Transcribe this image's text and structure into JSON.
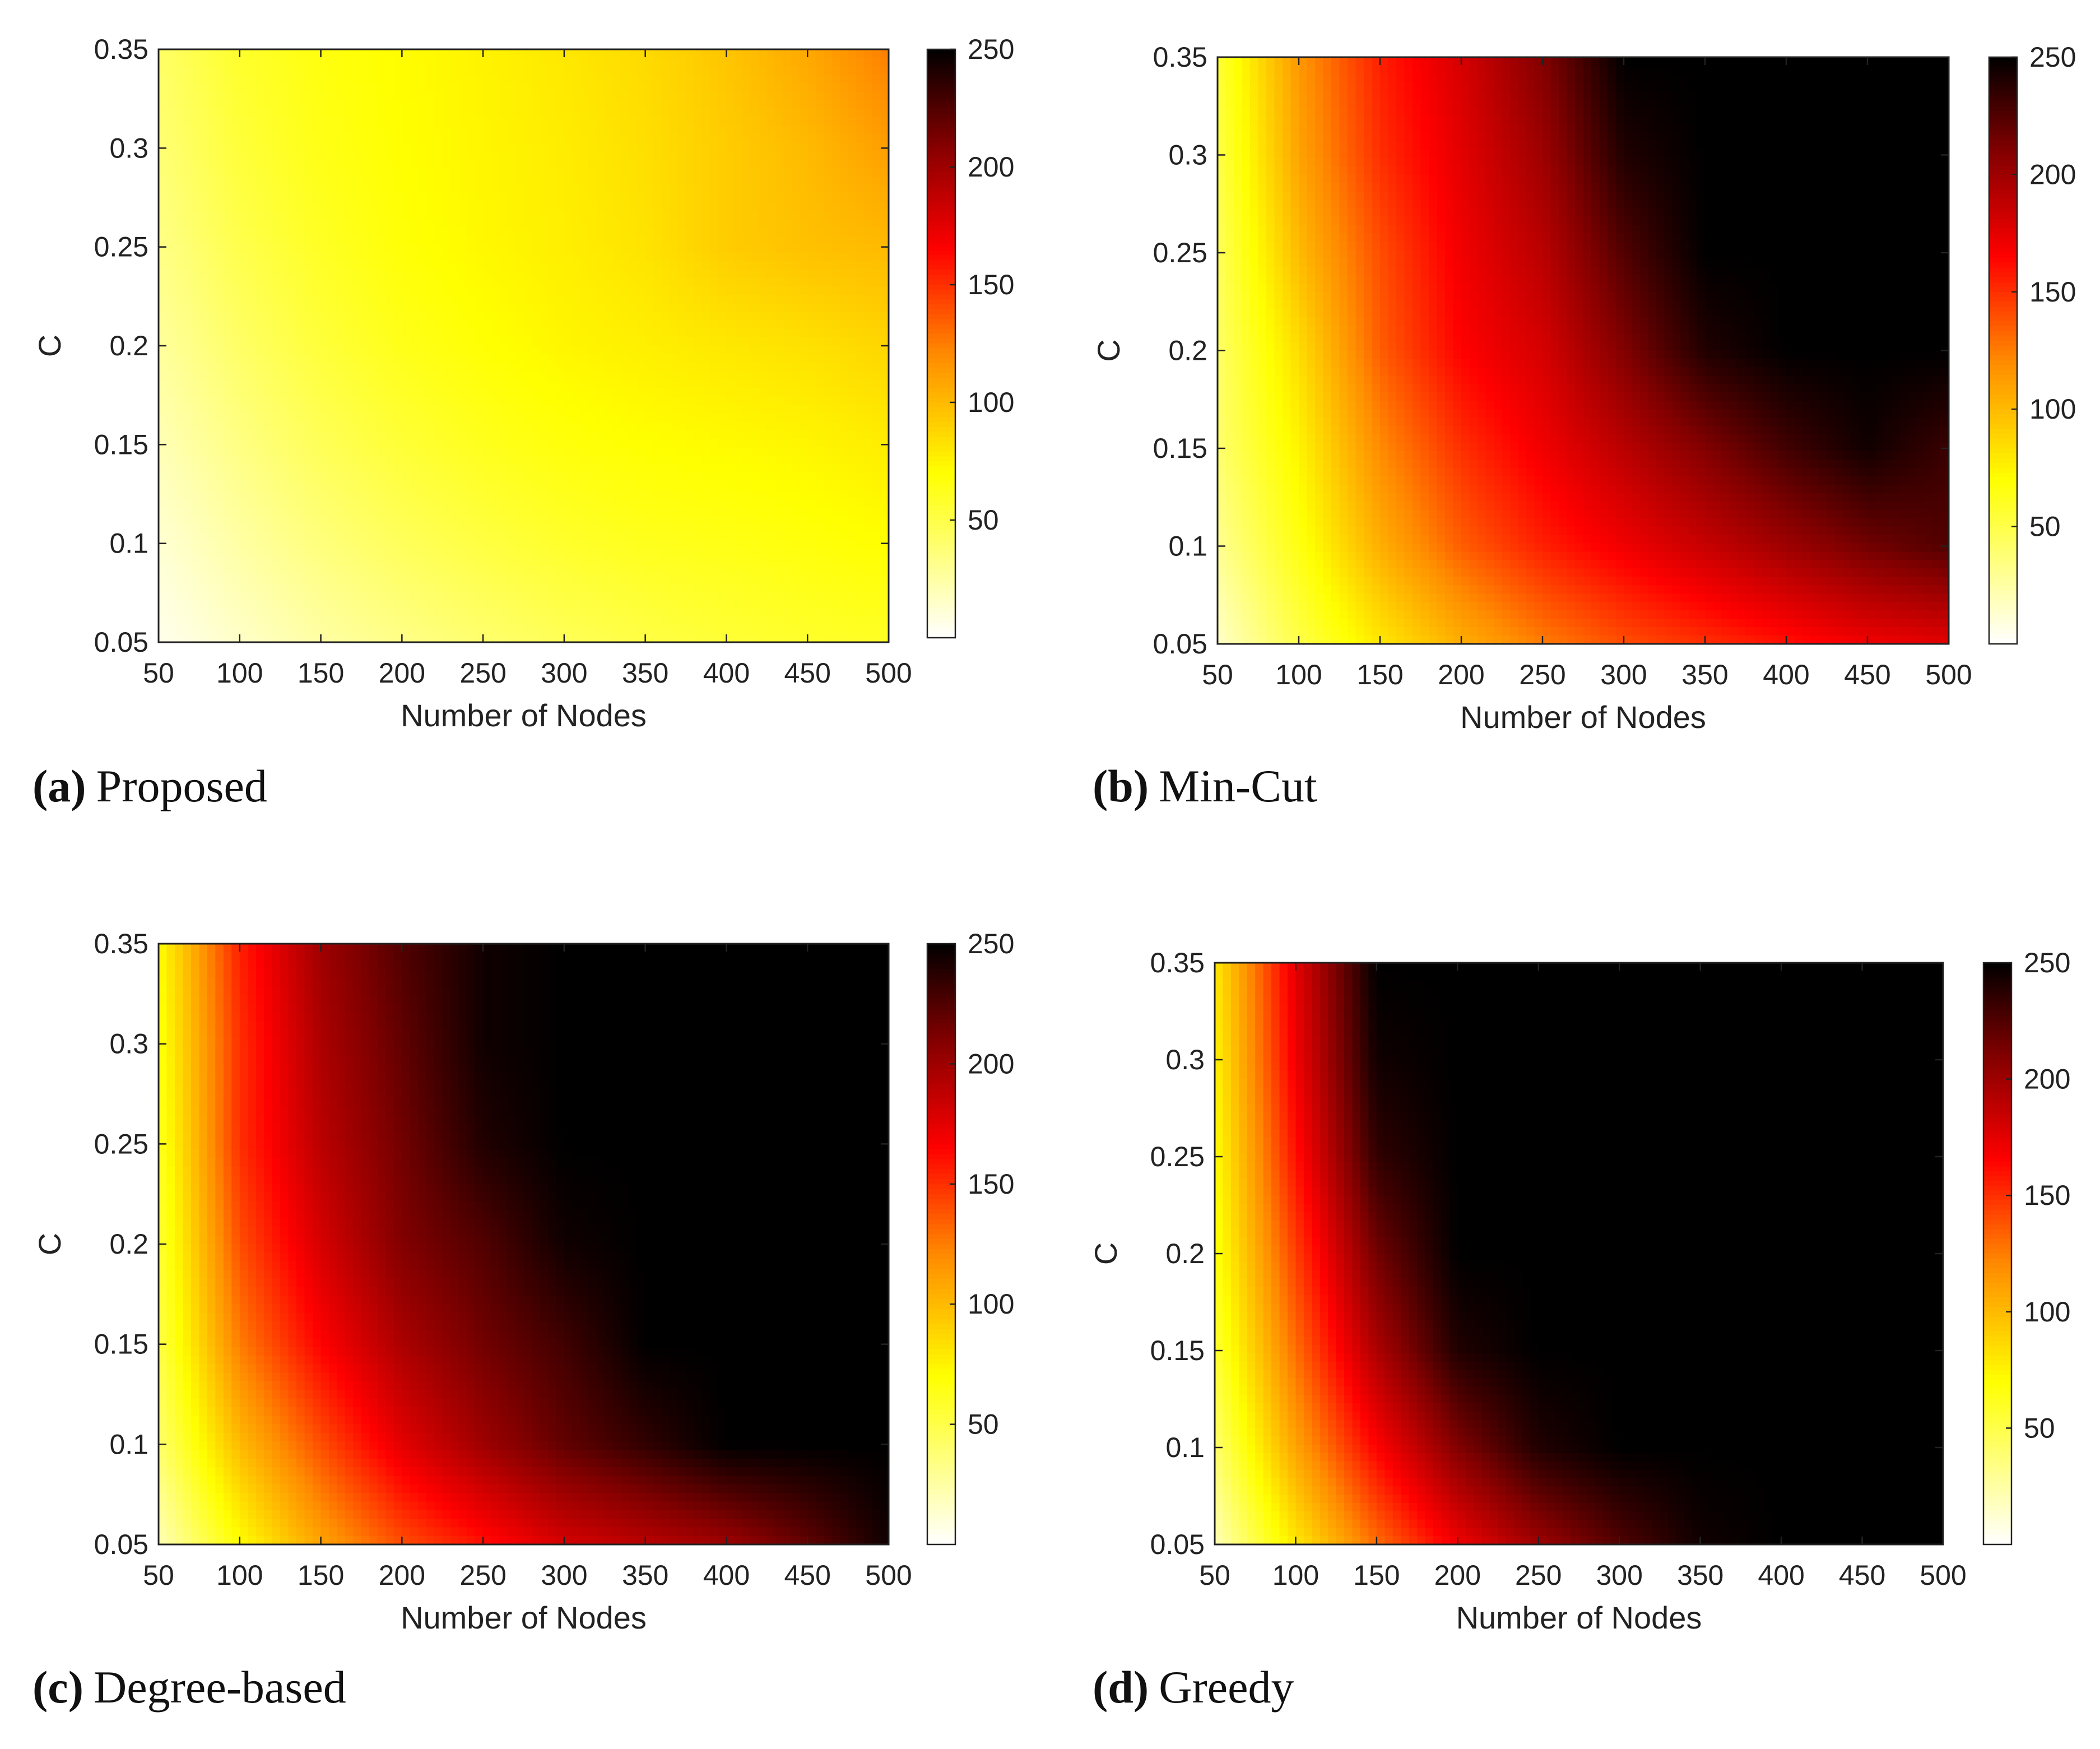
{
  "colorbar": {
    "min": 0,
    "max": 250,
    "ticks": [
      50,
      100,
      150,
      200,
      250
    ],
    "colormap": "hot (reversed)",
    "stops": [
      "#ffffff",
      "#ffff00",
      "#ff8000",
      "#ff0000",
      "#8b0000",
      "#000000"
    ]
  },
  "chart_data": [
    {
      "type": "heatmap",
      "caption_letter": "(a)",
      "caption_text": "Proposed",
      "xlabel": "Number of Nodes",
      "ylabel": "C",
      "x": [
        50,
        100,
        150,
        200,
        250,
        300,
        350,
        400,
        450,
        500
      ],
      "y": [
        0.05,
        0.1,
        0.15,
        0.2,
        0.25,
        0.3,
        0.35
      ],
      "xticks": [
        "50",
        "100",
        "150",
        "200",
        "250",
        "300",
        "350",
        "400",
        "450",
        "500"
      ],
      "yticks": [
        "0.05",
        "0.1",
        "0.15",
        "0.2",
        "0.25",
        "0.3",
        "0.35"
      ],
      "xlim": [
        50,
        500
      ],
      "ylim": [
        0.05,
        0.35
      ],
      "clim": [
        0,
        250
      ],
      "colorbar_ticks": [
        "50",
        "100",
        "150",
        "200",
        "250"
      ],
      "z": [
        [
          5,
          15,
          25,
          33,
          40,
          46,
          51,
          55,
          58,
          60
        ],
        [
          12,
          25,
          36,
          45,
          52,
          58,
          62,
          64,
          67,
          70
        ],
        [
          20,
          34,
          46,
          55,
          62,
          67,
          70,
          72,
          74,
          78
        ],
        [
          27,
          42,
          54,
          63,
          69,
          74,
          77,
          80,
          83,
          88
        ],
        [
          33,
          49,
          60,
          68,
          73,
          77,
          82,
          92,
          97,
          100
        ],
        [
          38,
          54,
          64,
          70,
          74,
          78,
          84,
          92,
          100,
          112
        ],
        [
          42,
          58,
          66,
          71,
          75,
          80,
          86,
          95,
          108,
          125
        ]
      ]
    },
    {
      "type": "heatmap",
      "caption_letter": "(b)",
      "caption_text": "Min-Cut",
      "xlabel": "Number of Nodes",
      "ylabel": "C",
      "x": [
        50,
        100,
        150,
        200,
        250,
        300,
        350,
        400,
        450,
        500
      ],
      "y": [
        0.05,
        0.1,
        0.15,
        0.2,
        0.25,
        0.3,
        0.35
      ],
      "xticks": [
        "50",
        "100",
        "150",
        "200",
        "250",
        "300",
        "350",
        "400",
        "450",
        "500"
      ],
      "yticks": [
        "0.05",
        "0.1",
        "0.15",
        "0.2",
        "0.25",
        "0.3",
        "0.35"
      ],
      "xlim": [
        50,
        500
      ],
      "ylim": [
        0.05,
        0.35
      ],
      "clim": [
        0,
        250
      ],
      "colorbar_ticks": [
        "50",
        "100",
        "150",
        "200",
        "250"
      ],
      "z": [
        [
          15,
          50,
          80,
          105,
          125,
          140,
          150,
          160,
          170,
          175
        ],
        [
          30,
          65,
          105,
          135,
          155,
          170,
          185,
          200,
          215,
          225
        ],
        [
          40,
          75,
          120,
          150,
          170,
          190,
          210,
          230,
          245,
          232
        ],
        [
          42,
          85,
          135,
          165,
          180,
          210,
          240,
          250,
          250,
          250
        ],
        [
          45,
          100,
          140,
          170,
          190,
          225,
          250,
          250,
          250,
          250
        ],
        [
          50,
          110,
          150,
          175,
          200,
          240,
          250,
          250,
          250,
          250
        ],
        [
          55,
          115,
          155,
          180,
          210,
          250,
          250,
          250,
          250,
          250
        ]
      ]
    },
    {
      "type": "heatmap",
      "caption_letter": "(c)",
      "caption_text": "Degree-based",
      "xlabel": "Number of Nodes",
      "ylabel": "C",
      "x": [
        50,
        100,
        150,
        200,
        250,
        300,
        350,
        400,
        450,
        500
      ],
      "y": [
        0.05,
        0.1,
        0.15,
        0.2,
        0.25,
        0.3,
        0.35
      ],
      "xticks": [
        "50",
        "100",
        "150",
        "200",
        "250",
        "300",
        "350",
        "400",
        "450",
        "500"
      ],
      "yticks": [
        "0.05",
        "0.1",
        "0.15",
        "0.2",
        "0.25",
        "0.3",
        "0.35"
      ],
      "xlim": [
        50,
        500
      ],
      "ylim": [
        0.05,
        0.35
      ],
      "clim": [
        0,
        250
      ],
      "colorbar_ticks": [
        "50",
        "100",
        "150",
        "200",
        "250"
      ],
      "z": [
        [
          20,
          70,
          110,
          140,
          160,
          180,
          190,
          200,
          220,
          245
        ],
        [
          40,
          100,
          140,
          175,
          200,
          220,
          235,
          250,
          250,
          250
        ],
        [
          50,
          125,
          165,
          195,
          215,
          230,
          250,
          250,
          250,
          250
        ],
        [
          55,
          140,
          180,
          210,
          225,
          245,
          250,
          250,
          250,
          250
        ],
        [
          60,
          150,
          190,
          215,
          240,
          250,
          250,
          250,
          250,
          250
        ],
        [
          65,
          150,
          195,
          220,
          245,
          250,
          250,
          250,
          250,
          250
        ],
        [
          70,
          155,
          200,
          225,
          245,
          250,
          250,
          250,
          250,
          250
        ]
      ]
    },
    {
      "type": "heatmap",
      "caption_letter": "(d)",
      "caption_text": "Greedy",
      "xlabel": "Number of Nodes",
      "ylabel": "C",
      "x": [
        50,
        100,
        150,
        200,
        250,
        300,
        350,
        400,
        450,
        500
      ],
      "y": [
        0.05,
        0.1,
        0.15,
        0.2,
        0.25,
        0.3,
        0.35
      ],
      "xticks": [
        "50",
        "100",
        "150",
        "200",
        "250",
        "300",
        "350",
        "400",
        "450",
        "500"
      ],
      "yticks": [
        "0.05",
        "0.1",
        "0.15",
        "0.2",
        "0.25",
        "0.3",
        "0.35"
      ],
      "xlim": [
        50,
        500
      ],
      "ylim": [
        0.05,
        0.35
      ],
      "clim": [
        0,
        250
      ],
      "colorbar_ticks": [
        "50",
        "100",
        "150",
        "200",
        "250"
      ],
      "z": [
        [
          20,
          80,
          130,
          170,
          200,
          225,
          245,
          250,
          250,
          250
        ],
        [
          40,
          110,
          165,
          210,
          240,
          250,
          250,
          250,
          250,
          250
        ],
        [
          55,
          130,
          195,
          240,
          250,
          250,
          250,
          250,
          250,
          250
        ],
        [
          65,
          145,
          215,
          250,
          250,
          250,
          250,
          250,
          250,
          250
        ],
        [
          70,
          160,
          235,
          250,
          250,
          250,
          250,
          250,
          250,
          250
        ],
        [
          75,
          170,
          245,
          250,
          250,
          250,
          250,
          250,
          250,
          250
        ],
        [
          80,
          175,
          250,
          250,
          250,
          250,
          250,
          250,
          250,
          250
        ]
      ]
    }
  ]
}
